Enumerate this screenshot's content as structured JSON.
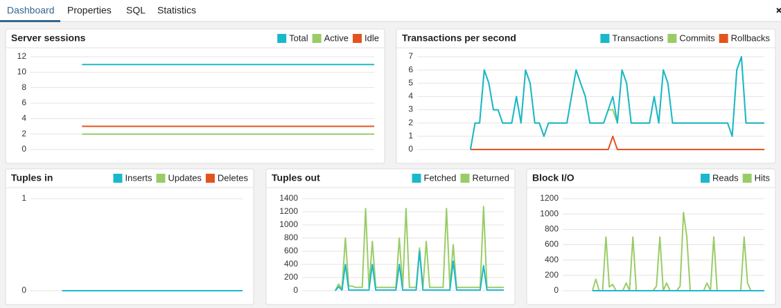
{
  "tabs": [
    "Dashboard",
    "Properties",
    "SQL",
    "Statistics"
  ],
  "chart_data": [
    {
      "type": "line",
      "title": "Server sessions",
      "ylim": [
        0,
        12
      ],
      "yticks": [
        0,
        2,
        4,
        6,
        8,
        10,
        12
      ],
      "grid": true,
      "series": [
        {
          "name": "Total",
          "color": "#1bb8cc",
          "values": [
            null,
            null,
            null,
            null,
            null,
            11,
            11,
            11,
            11,
            11,
            11,
            11,
            11,
            11,
            11,
            11,
            11,
            11,
            11,
            11,
            11,
            11,
            11,
            11,
            11,
            11,
            11,
            11,
            11,
            11,
            11,
            11,
            11,
            11,
            11,
            11
          ]
        },
        {
          "name": "Active",
          "color": "#99cc66",
          "values": [
            null,
            null,
            null,
            null,
            null,
            2,
            2,
            2,
            2,
            2,
            2,
            2,
            2,
            2,
            2,
            2,
            2,
            2,
            2,
            2,
            2,
            2,
            2,
            2,
            2,
            2,
            2,
            2,
            2,
            2,
            2,
            2,
            2,
            2,
            2,
            2
          ]
        },
        {
          "name": "Idle",
          "color": "#e4531e",
          "values": [
            null,
            null,
            null,
            null,
            null,
            3,
            3,
            3,
            3,
            3,
            3,
            3,
            3,
            3,
            3,
            3,
            3,
            3,
            3,
            3,
            3,
            3,
            3,
            3,
            3,
            3,
            3,
            3,
            3,
            3,
            3,
            3,
            3,
            3,
            3,
            3
          ]
        }
      ]
    },
    {
      "type": "line",
      "title": "Transactions per second",
      "ylim": [
        0,
        7
      ],
      "yticks": [
        0,
        1,
        2,
        3,
        4,
        5,
        6,
        7
      ],
      "grid": true,
      "series": [
        {
          "name": "Transactions",
          "color": "#1bb8cc",
          "values": [
            null,
            null,
            null,
            null,
            null,
            null,
            null,
            null,
            null,
            null,
            null,
            0,
            2,
            2,
            6,
            5,
            3,
            3,
            2,
            2,
            2,
            4,
            2,
            6,
            5,
            2,
            2,
            1,
            2,
            2,
            2,
            2,
            2,
            4,
            6,
            5,
            4,
            2,
            2,
            2,
            2,
            3,
            4,
            2,
            6,
            5,
            2,
            2,
            2,
            2,
            2,
            4,
            2,
            6,
            5,
            2,
            2,
            2,
            2,
            2,
            2,
            2,
            2,
            2,
            2,
            2,
            2,
            2,
            1,
            6,
            7,
            2,
            2,
            2,
            2,
            2
          ]
        },
        {
          "name": "Commits",
          "color": "#99cc66",
          "values": [
            null,
            null,
            null,
            null,
            null,
            null,
            null,
            null,
            null,
            null,
            null,
            0,
            2,
            2,
            6,
            5,
            3,
            3,
            2,
            2,
            2,
            4,
            2,
            6,
            5,
            2,
            2,
            1,
            2,
            2,
            2,
            2,
            2,
            4,
            6,
            5,
            4,
            2,
            2,
            2,
            2,
            3,
            3,
            2,
            6,
            5,
            2,
            2,
            2,
            2,
            2,
            4,
            2,
            6,
            5,
            2,
            2,
            2,
            2,
            2,
            2,
            2,
            2,
            2,
            2,
            2,
            2,
            2,
            1,
            6,
            7,
            2,
            2,
            2,
            2,
            2
          ]
        },
        {
          "name": "Rollbacks",
          "color": "#e4531e",
          "values": [
            null,
            null,
            null,
            null,
            null,
            null,
            null,
            null,
            null,
            null,
            null,
            0,
            0,
            0,
            0,
            0,
            0,
            0,
            0,
            0,
            0,
            0,
            0,
            0,
            0,
            0,
            0,
            0,
            0,
            0,
            0,
            0,
            0,
            0,
            0,
            0,
            0,
            0,
            0,
            0,
            0,
            0,
            1,
            0,
            0,
            0,
            0,
            0,
            0,
            0,
            0,
            0,
            0,
            0,
            0,
            0,
            0,
            0,
            0,
            0,
            0,
            0,
            0,
            0,
            0,
            0,
            0,
            0,
            0,
            0,
            0,
            0,
            0,
            0,
            0,
            0
          ]
        }
      ]
    },
    {
      "type": "line",
      "title": "Tuples in",
      "ylim": [
        0,
        1
      ],
      "yticks": [
        0,
        1
      ],
      "grid": true,
      "series": [
        {
          "name": "Inserts",
          "color": "#1bb8cc",
          "values": [
            null,
            null,
            null,
            null,
            0,
            0,
            0,
            0,
            0,
            0,
            0,
            0,
            0,
            0,
            0,
            0,
            0,
            0,
            0,
            0,
            0,
            0,
            0,
            0,
            0,
            0,
            0,
            0,
            0,
            0
          ]
        },
        {
          "name": "Updates",
          "color": "#99cc66",
          "values": [
            null,
            null,
            null,
            null,
            0,
            0,
            0,
            0,
            0,
            0,
            0,
            0,
            0,
            0,
            0,
            0,
            0,
            0,
            0,
            0,
            0,
            0,
            0,
            0,
            0,
            0,
            0,
            0,
            0,
            0
          ]
        },
        {
          "name": "Deletes",
          "color": "#e4531e",
          "values": [
            null,
            null,
            null,
            null,
            0,
            0,
            0,
            0,
            0,
            0,
            0,
            0,
            0,
            0,
            0,
            0,
            0,
            0,
            0,
            0,
            0,
            0,
            0,
            0,
            0,
            0,
            0,
            0,
            0,
            0
          ]
        }
      ]
    },
    {
      "type": "line",
      "title": "Tuples out",
      "ylim": [
        0,
        1400
      ],
      "yticks": [
        0,
        200,
        400,
        600,
        800,
        1000,
        1200,
        1400
      ],
      "grid": true,
      "series": [
        {
          "name": "Fetched",
          "color": "#1bb8cc",
          "values": [
            null,
            null,
            null,
            null,
            null,
            null,
            null,
            null,
            null,
            0,
            60,
            10,
            400,
            10,
            10,
            10,
            10,
            10,
            10,
            10,
            400,
            10,
            10,
            10,
            10,
            10,
            10,
            10,
            400,
            10,
            10,
            10,
            10,
            10,
            600,
            10,
            10,
            10,
            10,
            10,
            10,
            10,
            10,
            10,
            450,
            10,
            10,
            10,
            10,
            10,
            10,
            10,
            10,
            380,
            10,
            10,
            10,
            10,
            10,
            10
          ]
        },
        {
          "name": "Returned",
          "color": "#99cc66",
          "values": [
            null,
            null,
            null,
            null,
            null,
            null,
            null,
            null,
            null,
            0,
            100,
            30,
            800,
            70,
            70,
            50,
            50,
            50,
            1250,
            50,
            750,
            50,
            50,
            50,
            50,
            50,
            50,
            50,
            800,
            50,
            1250,
            50,
            50,
            50,
            650,
            50,
            750,
            50,
            50,
            50,
            50,
            50,
            1250,
            50,
            700,
            50,
            50,
            50,
            50,
            50,
            50,
            50,
            50,
            1280,
            50,
            50,
            50,
            50,
            50,
            50
          ]
        }
      ]
    },
    {
      "type": "line",
      "title": "Block I/O",
      "ylim": [
        0,
        1200
      ],
      "yticks": [
        0,
        200,
        400,
        600,
        800,
        1000,
        1200
      ],
      "grid": true,
      "series": [
        {
          "name": "Reads",
          "color": "#1bb8cc",
          "values": [
            null,
            null,
            null,
            null,
            null,
            null,
            null,
            null,
            0,
            0,
            0,
            0,
            0,
            0,
            0,
            0,
            0,
            0,
            0,
            0,
            0,
            0,
            0,
            0,
            0,
            0,
            0,
            0,
            0,
            0,
            0,
            0,
            0,
            0,
            0,
            0,
            0,
            0,
            0,
            0,
            0,
            0,
            0,
            0,
            0,
            0,
            0,
            0,
            0,
            0,
            0,
            0,
            0,
            0,
            0,
            0,
            0,
            0,
            0,
            0
          ]
        },
        {
          "name": "Hits",
          "color": "#99cc66",
          "values": [
            null,
            null,
            null,
            null,
            null,
            null,
            null,
            null,
            0,
            150,
            0,
            0,
            700,
            50,
            80,
            0,
            0,
            0,
            100,
            0,
            700,
            0,
            0,
            0,
            0,
            0,
            0,
            60,
            700,
            0,
            100,
            0,
            0,
            0,
            60,
            1020,
            700,
            0,
            0,
            0,
            0,
            0,
            100,
            0,
            700,
            0,
            0,
            0,
            0,
            0,
            0,
            0,
            0,
            700,
            100,
            0,
            0,
            0,
            0,
            0
          ]
        }
      ]
    }
  ]
}
